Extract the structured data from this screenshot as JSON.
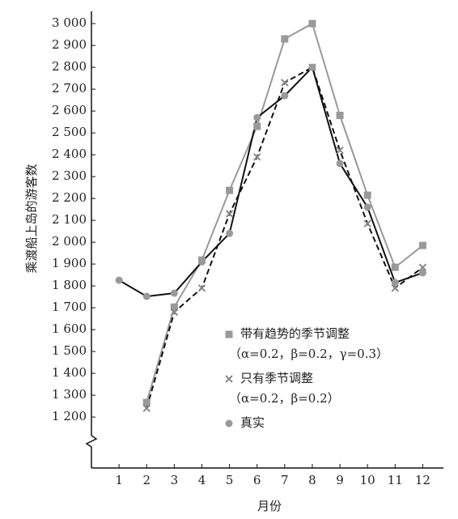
{
  "chart_data": {
    "type": "line",
    "y_label": "乘渡船上岛的游客数",
    "x_label": "月份",
    "x": [
      1,
      2,
      3,
      4,
      5,
      6,
      7,
      8,
      9,
      10,
      11,
      12
    ],
    "series": [
      {
        "name": "带有趋势的季节调整",
        "parameters": "（α=0.2，β=0.2，γ=0.3）",
        "color": "#999999",
        "marker": "square",
        "marker_color": "#999999",
        "dashed": false,
        "values": [
          null,
          1267,
          1703,
          1918,
          2237,
          2530,
          2930,
          3000,
          2580,
          2215,
          1885,
          1985
        ]
      },
      {
        "name": "只有季节调整",
        "parameters": "（α=0.2，β=0.2）",
        "color": "#111111",
        "marker": "x",
        "marker_color": "#888888",
        "dashed": true,
        "values": [
          null,
          1240,
          1680,
          1790,
          2130,
          2390,
          2730,
          2800,
          2420,
          2085,
          1790,
          1885
        ]
      },
      {
        "name": "真实",
        "color": "#111111",
        "marker": "circle",
        "marker_color": "#999999",
        "dashed": false,
        "values": [
          1826,
          1752,
          1767,
          1910,
          2040,
          2570,
          2670,
          2800,
          2360,
          2160,
          1815,
          1860
        ]
      }
    ],
    "xlim": [
      0,
      12.75
    ],
    "xticks": [
      1,
      2,
      3,
      4,
      5,
      6,
      7,
      8,
      9,
      10,
      11,
      12
    ],
    "ylim": [
      967,
      3056
    ],
    "yticks": [
      {
        "value": 1200,
        "label": "1 200"
      },
      {
        "value": 1300,
        "label": "1 300"
      },
      {
        "value": 1400,
        "label": "1 400"
      },
      {
        "value": 1500,
        "label": "1 500"
      },
      {
        "value": 1600,
        "label": "1 600"
      },
      {
        "value": 1700,
        "label": "1 700"
      },
      {
        "value": 1800,
        "label": "1 800"
      },
      {
        "value": 1900,
        "label": "1 900"
      },
      {
        "value": 2000,
        "label": "2 000"
      },
      {
        "value": 2100,
        "label": "2 100"
      },
      {
        "value": 2200,
        "label": "2 200"
      },
      {
        "value": 2300,
        "label": "2 300"
      },
      {
        "value": 2400,
        "label": "2 400"
      },
      {
        "value": 2500,
        "label": "2 500"
      },
      {
        "value": 2600,
        "label": "2 600"
      },
      {
        "value": 2700,
        "label": "2 700"
      },
      {
        "value": 2800,
        "label": "2 800"
      },
      {
        "value": 2900,
        "label": "2 900"
      },
      {
        "value": 3000,
        "label": "3 000"
      }
    ],
    "grid": false
  }
}
